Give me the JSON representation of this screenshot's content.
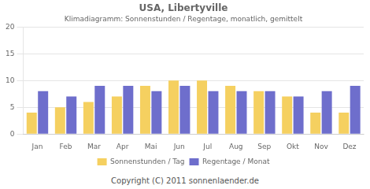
{
  "chart_data": {
    "type": "bar",
    "title": "USA, Libertyville",
    "subtitle": "Klimadiagramm: Sonnenstunden / Regentage, monatlich, gemittelt",
    "categories": [
      "Jan",
      "Feb",
      "Mar",
      "Apr",
      "Mai",
      "Jun",
      "Jul",
      "Aug",
      "Sep",
      "Okt",
      "Nov",
      "Dez"
    ],
    "series": [
      {
        "name": "Sonnenstunden / Tag",
        "color": "#F5D060",
        "values": [
          4,
          5,
          6,
          7,
          9,
          10,
          10,
          9,
          8,
          7,
          4,
          4
        ]
      },
      {
        "name": "Regentage / Monat",
        "color": "#6E6ECC",
        "values": [
          8,
          7,
          9,
          9,
          8,
          9,
          8,
          8,
          8,
          7,
          8,
          9
        ]
      }
    ],
    "ylim": [
      0,
      20
    ],
    "yticks": [
      0,
      5,
      10,
      15,
      20
    ],
    "grid": true,
    "legend": "bottom",
    "annotations": [
      "Copyright (C) 2011 sonnenlaender.de"
    ]
  }
}
